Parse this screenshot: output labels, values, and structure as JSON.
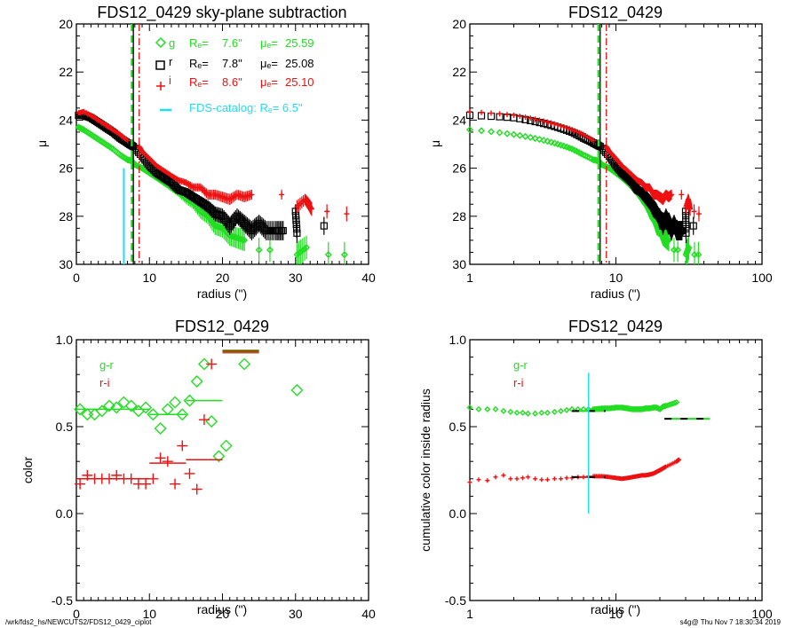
{
  "footer": {
    "left": "/wrk/fds2_hs/NEWCUTS2/FDS12_0429_ciplot",
    "right": "s4g@  Thu Nov  7 18:30:34 2019"
  },
  "colors": {
    "g": "#22dd22",
    "r": "#000000",
    "i": "#ee1111",
    "catalog": "#22ddee"
  },
  "chart_data": [
    {
      "id": "profile-linear",
      "type": "scatter",
      "title": "FDS12_0429 sky-plane subtraction",
      "xlabel": "radius (\")",
      "ylabel": "μ",
      "xscale": "linear",
      "xlim": [
        0,
        40
      ],
      "ylim": [
        30,
        20
      ],
      "xticks": [
        "0",
        "10",
        "20",
        "30",
        "40"
      ],
      "yticks": [
        "20",
        "22",
        "24",
        "26",
        "28",
        "30"
      ],
      "legend": [
        {
          "band": "g",
          "marker": "diamond",
          "re_label": "Rₑ=",
          "re": "7.6\"",
          "mue_label": "μₑ=",
          "mue": "25.59"
        },
        {
          "band": "r",
          "marker": "square",
          "re_label": "Rₑ=",
          "re": "7.8\"",
          "mue_label": "μₑ=",
          "mue": "25.08"
        },
        {
          "band": "i",
          "marker": "plus",
          "re_label": "Rₑ=",
          "re": "8.6\"",
          "mue_label": "μₑ=",
          "mue": "25.10"
        }
      ],
      "catalog_legend": "FDS-catalog: Rₑ=   6.5\"",
      "vlines": [
        {
          "band": "g",
          "x": 7.6,
          "style": "dashed"
        },
        {
          "band": "r",
          "x": 7.8,
          "style": "solid"
        },
        {
          "band": "i",
          "x": 8.6,
          "style": "dashdot"
        }
      ],
      "catalog_line": {
        "x": 6.5,
        "y_from": 26.0,
        "y_to": 30.0
      },
      "series": [
        {
          "name": "g",
          "x": [
            0.3,
            1,
            2,
            3,
            4,
            5,
            6,
            7,
            7.6,
            8,
            9,
            10,
            11,
            12,
            13,
            14,
            15,
            16,
            17,
            18,
            19,
            20,
            21,
            22,
            23,
            25,
            26.5,
            30.2,
            31.5,
            34.5,
            36.7
          ],
          "y": [
            24.3,
            24.4,
            24.6,
            24.8,
            25.0,
            25.2,
            25.45,
            25.65,
            25.7,
            25.85,
            26.0,
            26.2,
            26.4,
            26.6,
            26.8,
            27.0,
            27.25,
            27.45,
            27.8,
            28.0,
            28.4,
            28.5,
            28.8,
            28.9,
            29.0,
            29.4,
            29.4,
            29.6,
            29.3,
            29.6,
            29.6
          ]
        },
        {
          "name": "r",
          "x": [
            0.3,
            1,
            2,
            3,
            4,
            5,
            6,
            7,
            7.8,
            9,
            10,
            11,
            12,
            13,
            14,
            15,
            16,
            17,
            18,
            19,
            20,
            21,
            22,
            23,
            24,
            25,
            26,
            27.3,
            28.3,
            30,
            30.2,
            33.9
          ],
          "y": [
            23.8,
            23.8,
            23.9,
            24.1,
            24.3,
            24.5,
            24.75,
            24.95,
            25.1,
            25.5,
            25.9,
            26.2,
            26.4,
            26.6,
            26.9,
            27.0,
            27.2,
            27.4,
            27.6,
            27.9,
            28.0,
            28.4,
            28.0,
            28.3,
            28.6,
            28.3,
            28.6,
            28.6,
            28.6,
            27.8,
            28.7,
            28.4
          ]
        },
        {
          "name": "i",
          "x": [
            0.3,
            1,
            2,
            3,
            4,
            5,
            6,
            7,
            8.6,
            9,
            10,
            11,
            12,
            13,
            14,
            15,
            16,
            17,
            18,
            19,
            20,
            21,
            22,
            23,
            24,
            28.1,
            30.2,
            31.3,
            31.8,
            32.2,
            34.3,
            37.0
          ],
          "y": [
            23.7,
            23.65,
            23.8,
            24.0,
            24.2,
            24.4,
            24.6,
            24.85,
            25.1,
            25.3,
            25.6,
            25.9,
            26.1,
            26.3,
            26.5,
            26.6,
            26.8,
            26.8,
            27.1,
            27.1,
            27.2,
            27.3,
            27.1,
            27.2,
            27.1,
            27.1,
            27.6,
            27.3,
            27.5,
            27.7,
            27.8,
            27.9
          ]
        }
      ]
    },
    {
      "id": "profile-log",
      "type": "scatter",
      "title": "FDS12_0429",
      "xlabel": "radius (\")",
      "ylabel": "μ",
      "xscale": "log",
      "xlim": [
        1,
        100
      ],
      "ylim": [
        30,
        20
      ],
      "xticks": [
        "1",
        "10",
        "100"
      ],
      "yticks": [
        "20",
        "22",
        "24",
        "26",
        "28",
        "30"
      ],
      "vlines": [
        {
          "band": "g",
          "x": 7.6,
          "style": "dashed"
        },
        {
          "band": "r",
          "x": 7.8,
          "style": "solid"
        },
        {
          "band": "i",
          "x": 8.6,
          "style": "dashdot"
        }
      ]
    },
    {
      "id": "color-profile",
      "type": "scatter",
      "title": "FDS12_0429",
      "xlabel": "radius (\")",
      "ylabel": "color",
      "xscale": "linear",
      "xlim": [
        0,
        40
      ],
      "ylim": [
        -0.5,
        1.0
      ],
      "xticks": [
        "0",
        "10",
        "20",
        "30",
        "40"
      ],
      "yticks": [
        "-0.5",
        "0.0",
        "0.5",
        "1.0"
      ],
      "legend": [
        {
          "name": "g-r",
          "band": "g"
        },
        {
          "name": "r-i",
          "band": "i"
        }
      ],
      "series": [
        {
          "name": "g-r",
          "marker": "diamond",
          "x": [
            0.5,
            1.5,
            2.5,
            3.5,
            4.5,
            5.5,
            6.5,
            7.5,
            8.5,
            9.5,
            10.5,
            11.5,
            12.5,
            13.5,
            14.5,
            15.5,
            16.5,
            17.5,
            18.5,
            19.5,
            20.5,
            23,
            30.2
          ],
          "y": [
            0.6,
            0.57,
            0.57,
            0.59,
            0.62,
            0.61,
            0.64,
            0.62,
            0.59,
            0.61,
            0.57,
            0.49,
            0.6,
            0.64,
            0.57,
            0.65,
            0.76,
            0.86,
            0.53,
            0.33,
            0.39,
            0.86,
            0.71
          ]
        },
        {
          "name": "r-i",
          "marker": "plus",
          "x": [
            0.5,
            1.5,
            2.5,
            3.5,
            4.5,
            5.5,
            6.5,
            7.5,
            8.5,
            9.5,
            10.5,
            11.5,
            12.5,
            13.5,
            14.5,
            15.5,
            16.5,
            17.5,
            18.5
          ],
          "y": [
            0.17,
            0.22,
            0.2,
            0.2,
            0.2,
            0.22,
            0.2,
            0.2,
            0.17,
            0.17,
            0.2,
            0.32,
            0.3,
            0.17,
            0.39,
            0.23,
            0.14,
            0.54,
            0.86
          ]
        }
      ],
      "segments": [
        {
          "series": "g-r",
          "x": [
            0,
            10
          ],
          "y": 0.6
        },
        {
          "series": "g-r",
          "x": [
            10,
            15
          ],
          "y": 0.57
        },
        {
          "series": "g-r",
          "x": [
            15,
            20
          ],
          "y": 0.65
        },
        {
          "series": "g-r",
          "x": [
            20,
            25
          ],
          "y": 0.94
        },
        {
          "series": "r-i",
          "x": [
            0,
            10
          ],
          "y": 0.2
        },
        {
          "series": "r-i",
          "x": [
            10,
            15
          ],
          "y": 0.29
        },
        {
          "series": "r-i",
          "x": [
            15,
            20
          ],
          "y": 0.31
        },
        {
          "series": "r-i",
          "x": [
            20,
            25
          ],
          "y": 0.935
        }
      ]
    },
    {
      "id": "cumulative-color",
      "type": "scatter",
      "title": "FDS12_0429",
      "xlabel": "radius (\")",
      "ylabel": "cumulative color inside radius",
      "xscale": "log",
      "xlim": [
        1,
        100
      ],
      "ylim": [
        -0.5,
        1.0
      ],
      "xticks": [
        "1",
        "10",
        "100"
      ],
      "yticks": [
        "-0.5",
        "0.0",
        "0.5",
        "1.0"
      ],
      "legend": [
        {
          "name": "g-r",
          "band": "g"
        },
        {
          "name": "r-i",
          "band": "i"
        }
      ],
      "catalog_line": {
        "x": 6.5,
        "y_from": 0.0,
        "y_to": 0.81
      },
      "series": [
        {
          "name": "g-r",
          "marker": "diamond",
          "x": [
            1.0,
            1.15,
            1.32,
            1.5,
            1.7,
            1.9,
            2.1,
            2.3,
            2.5,
            2.8,
            3.1,
            3.4,
            3.8,
            4.2,
            4.6,
            5.0,
            5.5,
            6.0,
            6.5,
            7.0,
            8,
            9,
            10,
            11,
            12,
            13,
            14,
            15,
            16,
            17,
            18,
            19,
            20,
            21,
            22,
            26
          ],
          "y": [
            0.61,
            0.6,
            0.6,
            0.6,
            0.59,
            0.585,
            0.58,
            0.58,
            0.575,
            0.575,
            0.58,
            0.58,
            0.585,
            0.59,
            0.595,
            0.6,
            0.6,
            0.6,
            0.6,
            0.6,
            0.605,
            0.605,
            0.61,
            0.61,
            0.605,
            0.6,
            0.6,
            0.6,
            0.605,
            0.605,
            0.61,
            0.61,
            0.6,
            0.615,
            0.62,
            0.64
          ]
        },
        {
          "name": "r-i",
          "marker": "plus",
          "x": [
            1.0,
            1.15,
            1.32,
            1.5,
            1.7,
            1.9,
            2.1,
            2.3,
            2.5,
            2.8,
            3.1,
            3.4,
            3.8,
            4.2,
            4.6,
            5.0,
            5.5,
            6.0,
            6.5,
            7.0,
            8,
            9,
            10,
            11,
            12,
            13,
            14,
            15,
            16,
            17,
            18,
            19,
            20,
            21,
            22,
            26,
            27
          ],
          "y": [
            0.18,
            0.195,
            0.19,
            0.21,
            0.22,
            0.2,
            0.2,
            0.205,
            0.21,
            0.2,
            0.195,
            0.195,
            0.2,
            0.2,
            0.205,
            0.205,
            0.21,
            0.21,
            0.215,
            0.215,
            0.215,
            0.21,
            0.205,
            0.2,
            0.205,
            0.21,
            0.215,
            0.22,
            0.22,
            0.225,
            0.23,
            0.24,
            0.25,
            0.26,
            0.27,
            0.3,
            0.31
          ]
        }
      ],
      "segments": [
        {
          "series": "g-r",
          "x": [
            5,
            8.5
          ],
          "y": 0.59,
          "style": "dashed-on-green"
        },
        {
          "series": "g-r",
          "x": [
            21.5,
            44
          ],
          "y": 0.545,
          "style": "dashed-on-green"
        },
        {
          "series": "r-i",
          "x": [
            5,
            8.5
          ],
          "y": 0.21,
          "style": "dashed-on-red"
        }
      ]
    }
  ]
}
